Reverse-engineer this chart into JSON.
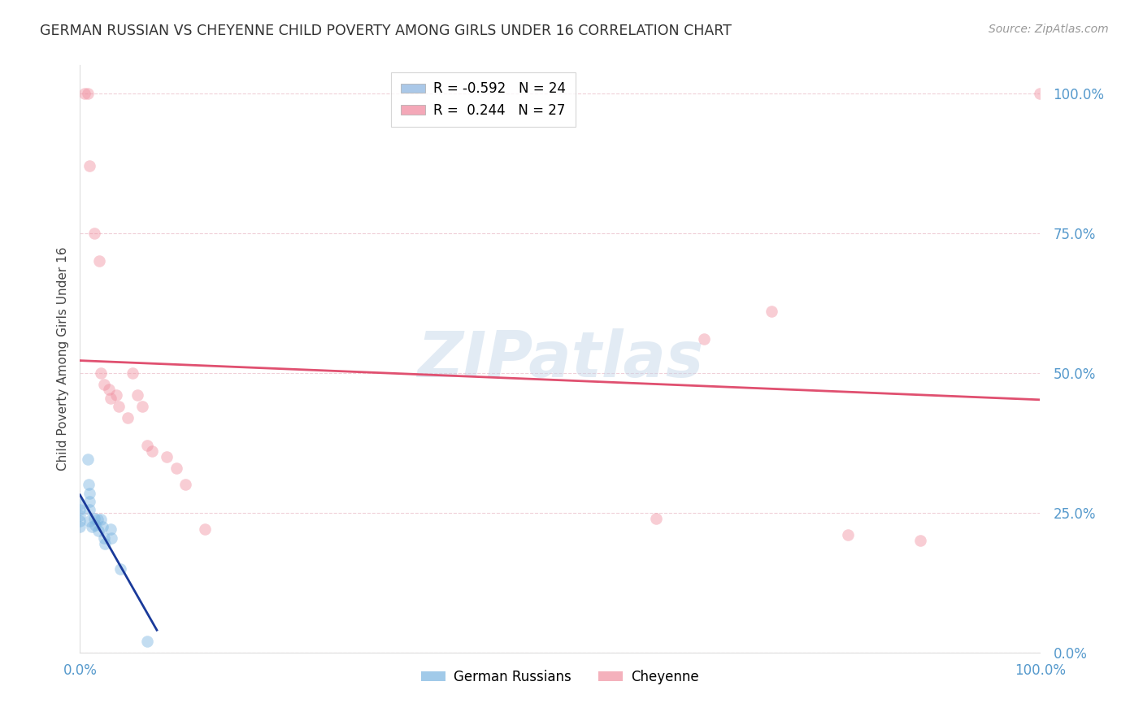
{
  "title": "GERMAN RUSSIAN VS CHEYENNE CHILD POVERTY AMONG GIRLS UNDER 16 CORRELATION CHART",
  "source": "Source: ZipAtlas.com",
  "ylabel": "Child Poverty Among Girls Under 16",
  "ytick_labels": [
    "0.0%",
    "25.0%",
    "50.0%",
    "75.0%",
    "100.0%"
  ],
  "ytick_values": [
    0.0,
    0.25,
    0.5,
    0.75,
    1.0
  ],
  "xlim": [
    0.0,
    1.0
  ],
  "ylim": [
    0.0,
    1.05
  ],
  "legend_label1": "R = -0.592   N = 24",
  "legend_label2": "R =  0.244   N = 27",
  "legend_color1": "#aac8e8",
  "legend_color2": "#f4a8b8",
  "watermark_text": "ZIPatlas",
  "german_russian_color": "#7ab4e0",
  "cheyenne_color": "#f090a0",
  "trend_gr_color": "#1a3a9a",
  "trend_ch_color": "#e05070",
  "background_color": "#ffffff",
  "grid_color": "#f0d0d8",
  "dot_size": 110,
  "dot_alpha": 0.45,
  "german_russian_x": [
    0.0,
    0.0,
    0.0,
    0.0,
    0.0,
    0.008,
    0.009,
    0.01,
    0.01,
    0.01,
    0.01,
    0.012,
    0.015,
    0.016,
    0.018,
    0.019,
    0.022,
    0.023,
    0.025,
    0.026,
    0.032,
    0.033,
    0.042,
    0.07
  ],
  "german_russian_y": [
    0.265,
    0.255,
    0.245,
    0.235,
    0.225,
    0.345,
    0.3,
    0.285,
    0.27,
    0.255,
    0.235,
    0.225,
    0.24,
    0.228,
    0.238,
    0.218,
    0.238,
    0.225,
    0.205,
    0.195,
    0.22,
    0.205,
    0.15,
    0.02
  ],
  "cheyenne_x": [
    0.005,
    0.008,
    0.01,
    0.015,
    0.02,
    0.022,
    0.025,
    0.03,
    0.032,
    0.038,
    0.04,
    0.05,
    0.055,
    0.06,
    0.065,
    0.07,
    0.075,
    0.09,
    0.1,
    0.11,
    0.13,
    0.6,
    0.65,
    0.72,
    0.8,
    0.875,
    1.0
  ],
  "cheyenne_y": [
    1.0,
    1.0,
    0.87,
    0.75,
    0.7,
    0.5,
    0.48,
    0.47,
    0.455,
    0.46,
    0.44,
    0.42,
    0.5,
    0.46,
    0.44,
    0.37,
    0.36,
    0.35,
    0.33,
    0.3,
    0.22,
    0.24,
    0.56,
    0.61,
    0.21,
    0.2,
    1.0
  ],
  "title_fontsize": 12.5,
  "source_fontsize": 10,
  "tick_fontsize": 12,
  "ylabel_fontsize": 11,
  "legend_fontsize": 12
}
